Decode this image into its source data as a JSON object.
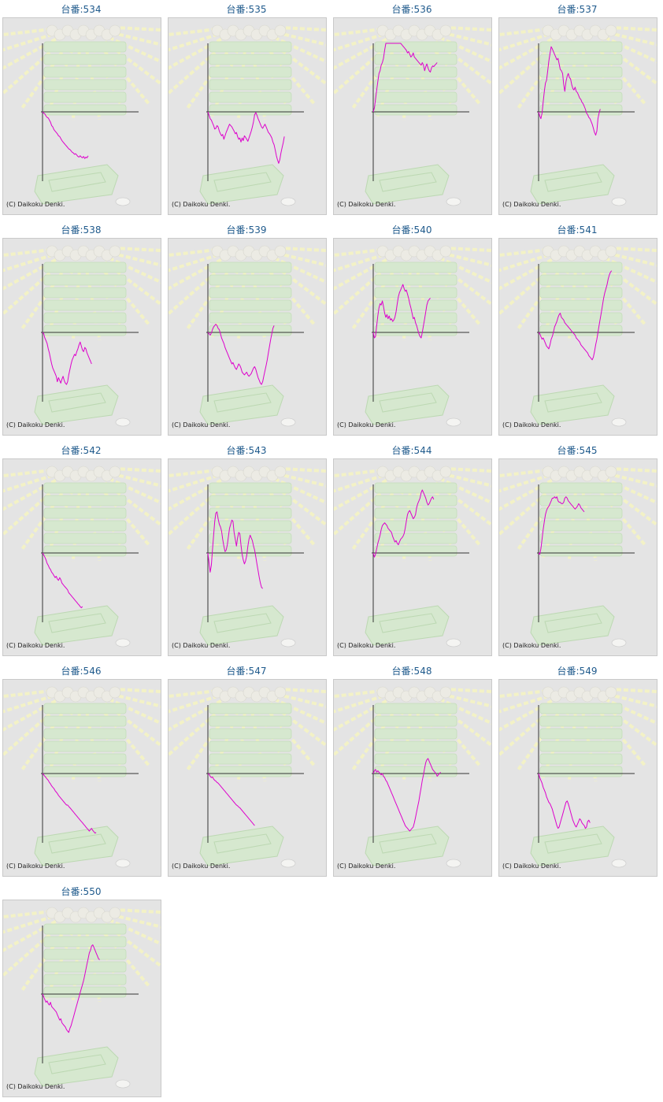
{
  "line_color": "#dd00cc",
  "title_color": "#1f5a8c",
  "chart_data": [
    {
      "type": "line",
      "title": "台番:534",
      "copyright": "(C) Daikoku Denki.",
      "values": [
        0,
        -2,
        -3,
        -6,
        -8,
        -9,
        -12,
        -15,
        -20,
        -22,
        -26,
        -28,
        -30,
        -32,
        -35,
        -36,
        -39,
        -42,
        -44,
        -46,
        -48,
        -50,
        -52,
        -54,
        -55,
        -57,
        -59,
        -60,
        -62,
        -61,
        -63,
        -65,
        -66,
        -64,
        -66,
        -67,
        -65,
        -68,
        -66,
        -67,
        -64
      ]
    },
    {
      "type": "line",
      "title": "台番:535",
      "copyright": "(C) Daikoku Denki.",
      "values": [
        0,
        -5,
        -10,
        -12,
        -16,
        -20,
        -25,
        -24,
        -20,
        -22,
        -28,
        -32,
        -35,
        -33,
        -40,
        -35,
        -30,
        -26,
        -22,
        -18,
        -20,
        -22,
        -25,
        -28,
        -32,
        -30,
        -36,
        -40,
        -38,
        -44,
        -38,
        -42,
        -35,
        -37,
        -40,
        -43,
        -38,
        -33,
        -28,
        -22,
        -14,
        -4,
        -1,
        -5,
        -10,
        -14,
        -18,
        -22,
        -24,
        -21,
        -18,
        -22,
        -26,
        -30,
        -32,
        -35,
        -38,
        -44,
        -48,
        -56,
        -64,
        -70,
        -75,
        -70,
        -60,
        -52,
        -45,
        -36
      ]
    },
    {
      "type": "line",
      "title": "台番:536",
      "copyright": "(C) Daikoku Denki.",
      "values": [
        0,
        6,
        18,
        32,
        44,
        56,
        60,
        68,
        72,
        78,
        90,
        100,
        106,
        110,
        118,
        120,
        115,
        112,
        116,
        120,
        119,
        108,
        104,
        108,
        100,
        98,
        96,
        94,
        92,
        90,
        86,
        88,
        84,
        80,
        82,
        86,
        80,
        78,
        76,
        74,
        72,
        70,
        68,
        72,
        68,
        60,
        66,
        70,
        64,
        60,
        58,
        64,
        67,
        66,
        68,
        70,
        72
      ]
    },
    {
      "type": "line",
      "title": "台番:537",
      "copyright": "(C) Daikoku Denki.",
      "values": [
        0,
        -6,
        -10,
        -2,
        14,
        30,
        42,
        46,
        60,
        74,
        85,
        95,
        92,
        88,
        84,
        80,
        76,
        78,
        70,
        62,
        60,
        56,
        40,
        30,
        44,
        52,
        56,
        50,
        48,
        40,
        34,
        32,
        36,
        30,
        28,
        24,
        20,
        18,
        14,
        12,
        8,
        4,
        -2,
        -4,
        -8,
        -10,
        -14,
        -18,
        -24,
        -30,
        -34,
        -28,
        -10,
        -2,
        4
      ]
    },
    {
      "type": "line",
      "title": "台番:538",
      "copyright": "(C) Daikoku Denki.",
      "values": [
        0,
        -2,
        -8,
        -12,
        -16,
        -24,
        -30,
        -38,
        -46,
        -52,
        -56,
        -60,
        -64,
        -72,
        -66,
        -70,
        -74,
        -68,
        -64,
        -70,
        -74,
        -76,
        -72,
        -62,
        -54,
        -46,
        -40,
        -36,
        -32,
        -34,
        -28,
        -24,
        -18,
        -14,
        -20,
        -26,
        -28,
        -22,
        -24,
        -30,
        -34,
        -38,
        -42,
        -46
      ]
    },
    {
      "type": "line",
      "title": "台番:539",
      "copyright": "(C) Daikoku Denki.",
      "values": [
        0,
        -2,
        -4,
        -1,
        4,
        8,
        10,
        12,
        10,
        6,
        4,
        -2,
        -8,
        -12,
        -16,
        -22,
        -26,
        -30,
        -34,
        -38,
        -42,
        -46,
        -44,
        -48,
        -52,
        -54,
        -50,
        -46,
        -48,
        -52,
        -58,
        -60,
        -62,
        -60,
        -58,
        -62,
        -64,
        -62,
        -60,
        -56,
        -52,
        -50,
        -54,
        -60,
        -66,
        -70,
        -74,
        -76,
        -72,
        -64,
        -56,
        -48,
        -40,
        -30,
        -20,
        -10,
        -2,
        6,
        10
      ]
    },
    {
      "type": "line",
      "title": "台番:540",
      "copyright": "(C) Daikoku Denki.",
      "values": [
        0,
        -8,
        -6,
        10,
        24,
        36,
        42,
        40,
        46,
        38,
        28,
        22,
        26,
        20,
        24,
        18,
        20,
        16,
        18,
        22,
        30,
        42,
        52,
        58,
        62,
        66,
        70,
        64,
        60,
        62,
        56,
        50,
        42,
        36,
        28,
        20,
        22,
        14,
        10,
        4,
        -2,
        -6,
        -8,
        0,
        10,
        20,
        30,
        40,
        46,
        48,
        50
      ]
    },
    {
      "type": "line",
      "title": "台番:541",
      "copyright": "(C) Daikoku Denki.",
      "values": [
        0,
        -2,
        -6,
        -10,
        -8,
        -12,
        -16,
        -20,
        -22,
        -24,
        -18,
        -10,
        -6,
        0,
        8,
        12,
        16,
        22,
        26,
        28,
        22,
        20,
        18,
        14,
        12,
        10,
        8,
        6,
        4,
        2,
        0,
        -2,
        -4,
        -8,
        -10,
        -12,
        -14,
        -18,
        -20,
        -22,
        -24,
        -26,
        -28,
        -30,
        -34,
        -36,
        -38,
        -40,
        -36,
        -28,
        -18,
        -10,
        0,
        10,
        20,
        30,
        40,
        50,
        58,
        64,
        70,
        78,
        84,
        88,
        90
      ]
    },
    {
      "type": "line",
      "title": "台番:542",
      "copyright": "(C) Daikoku Denki.",
      "values": [
        0,
        -3,
        -6,
        -10,
        -15,
        -18,
        -22,
        -24,
        -28,
        -30,
        -33,
        -36,
        -34,
        -38,
        -40,
        -36,
        -39,
        -44,
        -46,
        -48,
        -50,
        -52,
        -54,
        -58,
        -60,
        -62,
        -64,
        -66,
        -68,
        -70,
        -72,
        -74,
        -76,
        -78,
        -80,
        -78
      ]
    },
    {
      "type": "line",
      "title": "台番:543",
      "copyright": "(C) Daikoku Denki.",
      "values": [
        0,
        -14,
        -28,
        -18,
        4,
        26,
        46,
        58,
        60,
        50,
        42,
        38,
        32,
        20,
        10,
        2,
        4,
        12,
        24,
        36,
        42,
        48,
        46,
        30,
        20,
        10,
        22,
        30,
        28,
        12,
        -2,
        -10,
        -16,
        -12,
        -4,
        10,
        20,
        26,
        22,
        18,
        10,
        4,
        -6,
        -16,
        -26,
        -36,
        -44,
        -50,
        -52
      ]
    },
    {
      "type": "line",
      "title": "台番:544",
      "copyright": "(C) Daikoku Denki.",
      "values": [
        0,
        -6,
        -2,
        6,
        14,
        20,
        26,
        34,
        40,
        42,
        44,
        42,
        40,
        36,
        34,
        32,
        30,
        24,
        20,
        16,
        18,
        14,
        12,
        16,
        20,
        22,
        24,
        28,
        36,
        46,
        56,
        60,
        62,
        58,
        54,
        50,
        52,
        56,
        66,
        72,
        76,
        80,
        88,
        92,
        88,
        84,
        80,
        74,
        70,
        72,
        76,
        80,
        82,
        78
      ]
    },
    {
      "type": "line",
      "title": "台番:545",
      "copyright": "(C) Daikoku Denki.",
      "values": [
        0,
        -2,
        6,
        20,
        34,
        46,
        56,
        62,
        66,
        68,
        72,
        76,
        80,
        80,
        82,
        80,
        82,
        76,
        74,
        74,
        72,
        72,
        74,
        80,
        82,
        80,
        76,
        74,
        72,
        70,
        68,
        66,
        64,
        66,
        68,
        72,
        70,
        66,
        64,
        62,
        60
      ]
    },
    {
      "type": "line",
      "title": "台番:546",
      "copyright": "(C) Daikoku Denki.",
      "values": [
        0,
        -2,
        -4,
        -6,
        -8,
        -10,
        -13,
        -15,
        -18,
        -20,
        -22,
        -25,
        -27,
        -29,
        -32,
        -34,
        -36,
        -38,
        -40,
        -42,
        -44,
        -46,
        -46,
        -48,
        -50,
        -52,
        -54,
        -56,
        -58,
        -60,
        -62,
        -64,
        -66,
        -68,
        -70,
        -72,
        -74,
        -76,
        -78,
        -80,
        -82,
        -84,
        -82,
        -80,
        -83,
        -85,
        -87,
        -86
      ]
    },
    {
      "type": "line",
      "title": "台番:547",
      "copyright": "(C) Daikoku Denki.",
      "values": [
        0,
        -1,
        -4,
        -6,
        -5,
        -8,
        -10,
        -11,
        -13,
        -14,
        -16,
        -18,
        -20,
        -22,
        -24,
        -26,
        -28,
        -30,
        -32,
        -34,
        -36,
        -38,
        -40,
        -42,
        -44,
        -46,
        -47,
        -49,
        -50,
        -52,
        -54,
        -56,
        -58,
        -60,
        -62,
        -64,
        -66,
        -68,
        -70,
        -72,
        -74,
        -76
      ]
    },
    {
      "type": "line",
      "title": "台番:548",
      "copyright": "(C) Daikoku Denki.",
      "values": [
        0,
        4,
        6,
        2,
        4,
        2,
        0,
        -2,
        0,
        -4,
        -6,
        -10,
        -12,
        -16,
        -20,
        -24,
        -28,
        -32,
        -36,
        -40,
        -44,
        -48,
        -52,
        -56,
        -60,
        -64,
        -68,
        -72,
        -76,
        -78,
        -80,
        -82,
        -84,
        -82,
        -80,
        -78,
        -72,
        -64,
        -56,
        -48,
        -40,
        -30,
        -20,
        -10,
        -2,
        8,
        16,
        20,
        22,
        18,
        14,
        10,
        6,
        4,
        2,
        0,
        -4,
        -2,
        0,
        2
      ]
    },
    {
      "type": "line",
      "title": "台番:549",
      "copyright": "(C) Daikoku Denki.",
      "values": [
        0,
        -6,
        -10,
        -14,
        -20,
        -24,
        -28,
        -34,
        -38,
        -42,
        -44,
        -48,
        -52,
        -58,
        -64,
        -70,
        -76,
        -80,
        -78,
        -72,
        -66,
        -60,
        -54,
        -48,
        -42,
        -40,
        -44,
        -50,
        -56,
        -62,
        -68,
        -72,
        -76,
        -78,
        -74,
        -70,
        -66,
        -68,
        -72,
        -74,
        -76,
        -80,
        -78,
        -70,
        -68,
        -72
      ]
    },
    {
      "type": "line",
      "title": "台番:550",
      "copyright": "(C) Daikoku Denki.",
      "values": [
        0,
        -4,
        -8,
        -12,
        -10,
        -14,
        -16,
        -12,
        -18,
        -20,
        -22,
        -24,
        -26,
        -30,
        -34,
        -38,
        -36,
        -42,
        -44,
        -46,
        -48,
        -52,
        -54,
        -56,
        -50,
        -46,
        -40,
        -34,
        -28,
        -22,
        -16,
        -10,
        -4,
        2,
        8,
        14,
        20,
        28,
        36,
        44,
        52,
        60,
        64,
        70,
        72,
        68,
        64,
        60,
        56,
        52,
        50
      ]
    }
  ]
}
